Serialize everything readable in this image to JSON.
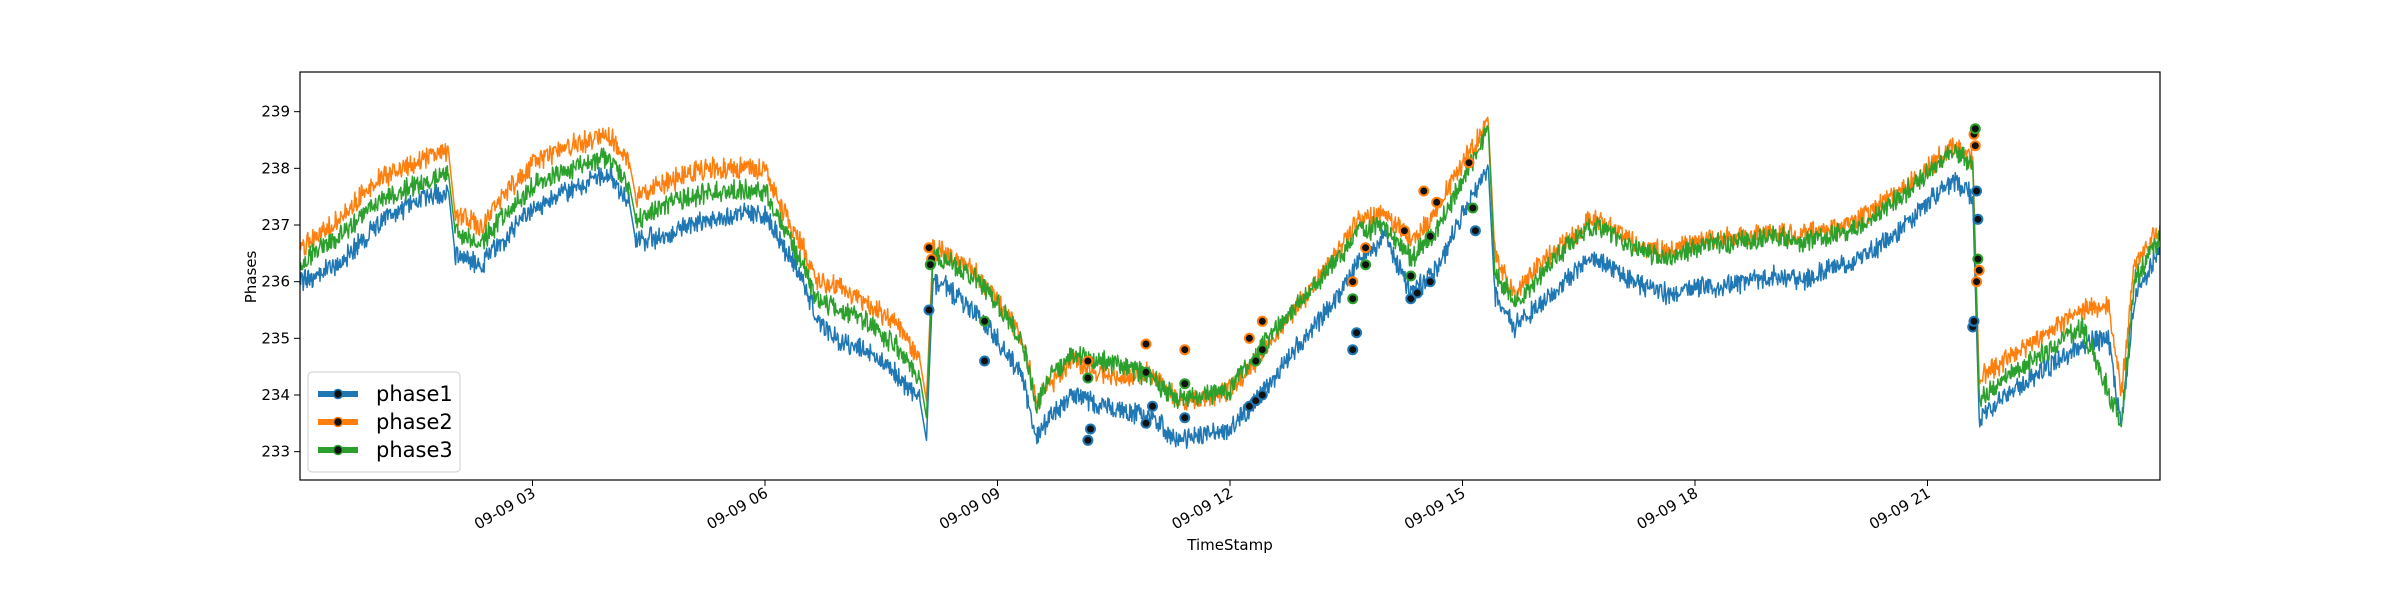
{
  "chart_data": {
    "type": "line",
    "xlabel": "TimeStamp",
    "ylabel": "Phases",
    "ylim": [
      232.5,
      239.7
    ],
    "xlim": [
      "2019-09-09 00:00",
      "2019-09-09 24:00"
    ],
    "yticks": [
      233,
      234,
      235,
      236,
      237,
      238,
      239
    ],
    "xticks": [
      {
        "value": "2019-09-09 03:00",
        "label": "09-09 03"
      },
      {
        "value": "2019-09-09 06:00",
        "label": "09-09 06"
      },
      {
        "value": "2019-09-09 09:00",
        "label": "09-09 09"
      },
      {
        "value": "2019-09-09 12:00",
        "label": "09-09 12"
      },
      {
        "value": "2019-09-09 15:00",
        "label": "09-09 15"
      },
      {
        "value": "2019-09-09 18:00",
        "label": "09-09 18"
      },
      {
        "value": "2019-09-09 21:00",
        "label": "09-09 21"
      }
    ],
    "legend": "lower-left",
    "grid": false,
    "series": [
      {
        "name": "phase1",
        "color": "#1f77b4",
        "points": [
          [
            "00:00",
            236.0
          ],
          [
            "00:30",
            236.3
          ],
          [
            "01:00",
            237.0
          ],
          [
            "01:20",
            237.3
          ],
          [
            "01:40",
            237.5
          ],
          [
            "01:55",
            237.6
          ],
          [
            "02:00",
            236.5
          ],
          [
            "02:20",
            236.3
          ],
          [
            "02:40",
            236.8
          ],
          [
            "03:00",
            237.3
          ],
          [
            "03:30",
            237.6
          ],
          [
            "04:00",
            237.9
          ],
          [
            "04:15",
            237.4
          ],
          [
            "04:20",
            236.7
          ],
          [
            "04:40",
            236.8
          ],
          [
            "05:00",
            237.0
          ],
          [
            "05:20",
            237.1
          ],
          [
            "05:40",
            237.2
          ],
          [
            "06:00",
            237.2
          ],
          [
            "06:15",
            236.6
          ],
          [
            "06:30",
            236.0
          ],
          [
            "06:40",
            235.3
          ],
          [
            "07:00",
            234.9
          ],
          [
            "07:20",
            234.8
          ],
          [
            "07:40",
            234.4
          ],
          [
            "08:00",
            233.9
          ],
          [
            "08:05",
            233.2
          ],
          [
            "08:10",
            236.0
          ],
          [
            "08:20",
            235.9
          ],
          [
            "08:40",
            235.5
          ],
          [
            "09:00",
            235.0
          ],
          [
            "09:20",
            234.3
          ],
          [
            "09:30",
            233.2
          ],
          [
            "09:40",
            233.6
          ],
          [
            "10:00",
            234.0
          ],
          [
            "10:20",
            233.8
          ],
          [
            "10:40",
            233.7
          ],
          [
            "11:00",
            233.6
          ],
          [
            "11:20",
            233.2
          ],
          [
            "11:40",
            233.3
          ],
          [
            "12:00",
            233.4
          ],
          [
            "12:20",
            233.9
          ],
          [
            "12:40",
            234.5
          ],
          [
            "13:00",
            235.1
          ],
          [
            "13:20",
            235.6
          ],
          [
            "13:40",
            236.4
          ],
          [
            "14:00",
            236.8
          ],
          [
            "14:20",
            235.8
          ],
          [
            "14:40",
            236.2
          ],
          [
            "15:00",
            237.2
          ],
          [
            "15:20",
            238.0
          ],
          [
            "15:25",
            235.8
          ],
          [
            "15:40",
            235.2
          ],
          [
            "16:00",
            235.6
          ],
          [
            "16:20",
            236.0
          ],
          [
            "16:40",
            236.4
          ],
          [
            "17:00",
            236.2
          ],
          [
            "17:20",
            235.9
          ],
          [
            "17:40",
            235.8
          ],
          [
            "18:00",
            235.9
          ],
          [
            "18:20",
            235.9
          ],
          [
            "18:40",
            236.0
          ],
          [
            "19:00",
            236.1
          ],
          [
            "19:20",
            236.0
          ],
          [
            "19:40",
            236.2
          ],
          [
            "20:00",
            236.3
          ],
          [
            "20:20",
            236.6
          ],
          [
            "20:40",
            236.9
          ],
          [
            "21:00",
            237.4
          ],
          [
            "21:20",
            237.8
          ],
          [
            "21:35",
            237.5
          ],
          [
            "21:40",
            233.6
          ],
          [
            "22:00",
            234.0
          ],
          [
            "22:20",
            234.3
          ],
          [
            "22:40",
            234.6
          ],
          [
            "23:00",
            234.9
          ],
          [
            "23:20",
            235.0
          ],
          [
            "23:30",
            233.4
          ],
          [
            "23:40",
            235.7
          ],
          [
            "24:00",
            236.6
          ]
        ]
      },
      {
        "name": "phase2",
        "color": "#ff7f0e",
        "points": [
          [
            "00:00",
            236.6
          ],
          [
            "00:30",
            237.1
          ],
          [
            "01:00",
            237.8
          ],
          [
            "01:20",
            238.0
          ],
          [
            "01:40",
            238.2
          ],
          [
            "01:55",
            238.3
          ],
          [
            "02:00",
            237.2
          ],
          [
            "02:20",
            237.0
          ],
          [
            "02:40",
            237.6
          ],
          [
            "03:00",
            238.1
          ],
          [
            "03:30",
            238.4
          ],
          [
            "04:00",
            238.6
          ],
          [
            "04:15",
            238.1
          ],
          [
            "04:20",
            237.5
          ],
          [
            "04:40",
            237.7
          ],
          [
            "05:00",
            237.9
          ],
          [
            "05:20",
            238.0
          ],
          [
            "05:40",
            238.0
          ],
          [
            "06:00",
            238.0
          ],
          [
            "06:15",
            237.2
          ],
          [
            "06:30",
            236.6
          ],
          [
            "06:40",
            236.0
          ],
          [
            "07:00",
            235.9
          ],
          [
            "07:20",
            235.6
          ],
          [
            "07:40",
            235.3
          ],
          [
            "08:00",
            234.6
          ],
          [
            "08:05",
            233.9
          ],
          [
            "08:10",
            236.6
          ],
          [
            "08:20",
            236.5
          ],
          [
            "08:40",
            236.2
          ],
          [
            "09:00",
            235.7
          ],
          [
            "09:20",
            234.9
          ],
          [
            "09:30",
            233.9
          ],
          [
            "09:40",
            234.2
          ],
          [
            "10:00",
            234.6
          ],
          [
            "10:20",
            234.4
          ],
          [
            "10:40",
            234.3
          ],
          [
            "11:00",
            234.4
          ],
          [
            "11:20",
            233.9
          ],
          [
            "11:40",
            233.9
          ],
          [
            "12:00",
            234.1
          ],
          [
            "12:20",
            234.6
          ],
          [
            "12:40",
            235.2
          ],
          [
            "13:00",
            235.8
          ],
          [
            "13:20",
            236.4
          ],
          [
            "13:40",
            237.1
          ],
          [
            "14:00",
            237.2
          ],
          [
            "14:20",
            236.7
          ],
          [
            "14:40",
            237.3
          ],
          [
            "15:00",
            238.1
          ],
          [
            "15:20",
            238.8
          ],
          [
            "15:25",
            236.5
          ],
          [
            "15:40",
            235.8
          ],
          [
            "16:00",
            236.3
          ],
          [
            "16:20",
            236.7
          ],
          [
            "16:40",
            237.1
          ],
          [
            "17:00",
            236.9
          ],
          [
            "17:20",
            236.6
          ],
          [
            "17:40",
            236.5
          ],
          [
            "18:00",
            236.7
          ],
          [
            "18:20",
            236.8
          ],
          [
            "18:40",
            236.8
          ],
          [
            "19:00",
            236.9
          ],
          [
            "19:20",
            236.8
          ],
          [
            "19:40",
            236.9
          ],
          [
            "20:00",
            237.0
          ],
          [
            "20:20",
            237.3
          ],
          [
            "20:40",
            237.6
          ],
          [
            "21:00",
            238.0
          ],
          [
            "21:20",
            238.4
          ],
          [
            "21:35",
            238.2
          ],
          [
            "21:40",
            234.3
          ],
          [
            "22:00",
            234.6
          ],
          [
            "22:20",
            234.9
          ],
          [
            "22:40",
            235.2
          ],
          [
            "23:00",
            235.5
          ],
          [
            "23:20",
            235.6
          ],
          [
            "23:30",
            234.0
          ],
          [
            "23:40",
            236.3
          ],
          [
            "24:00",
            237.0
          ]
        ]
      },
      {
        "name": "phase3",
        "color": "#2ca02c",
        "points": [
          [
            "00:00",
            236.3
          ],
          [
            "00:30",
            236.8
          ],
          [
            "01:00",
            237.4
          ],
          [
            "01:20",
            237.6
          ],
          [
            "01:40",
            237.8
          ],
          [
            "01:55",
            237.9
          ],
          [
            "02:00",
            236.9
          ],
          [
            "02:20",
            236.7
          ],
          [
            "02:40",
            237.2
          ],
          [
            "03:00",
            237.7
          ],
          [
            "03:30",
            238.0
          ],
          [
            "04:00",
            238.2
          ],
          [
            "04:15",
            237.7
          ],
          [
            "04:20",
            237.1
          ],
          [
            "04:40",
            237.3
          ],
          [
            "05:00",
            237.5
          ],
          [
            "05:20",
            237.6
          ],
          [
            "05:40",
            237.6
          ],
          [
            "06:00",
            237.6
          ],
          [
            "06:15",
            236.9
          ],
          [
            "06:30",
            236.3
          ],
          [
            "06:40",
            235.7
          ],
          [
            "07:00",
            235.5
          ],
          [
            "07:20",
            235.3
          ],
          [
            "07:40",
            234.9
          ],
          [
            "08:00",
            234.3
          ],
          [
            "08:05",
            233.6
          ],
          [
            "08:10",
            236.4
          ],
          [
            "08:20",
            236.4
          ],
          [
            "08:40",
            236.1
          ],
          [
            "09:00",
            235.6
          ],
          [
            "09:20",
            234.9
          ],
          [
            "09:30",
            233.8
          ],
          [
            "09:40",
            234.3
          ],
          [
            "10:00",
            234.7
          ],
          [
            "10:20",
            234.6
          ],
          [
            "10:40",
            234.5
          ],
          [
            "11:00",
            234.3
          ],
          [
            "11:20",
            233.9
          ],
          [
            "11:40",
            234.0
          ],
          [
            "12:00",
            234.1
          ],
          [
            "12:20",
            234.7
          ],
          [
            "12:40",
            235.3
          ],
          [
            "13:00",
            235.8
          ],
          [
            "13:20",
            236.3
          ],
          [
            "13:40",
            236.9
          ],
          [
            "14:00",
            237.0
          ],
          [
            "14:20",
            236.4
          ],
          [
            "14:40",
            236.9
          ],
          [
            "15:00",
            237.8
          ],
          [
            "15:20",
            238.7
          ],
          [
            "15:25",
            236.2
          ],
          [
            "15:40",
            235.6
          ],
          [
            "16:00",
            236.1
          ],
          [
            "16:20",
            236.6
          ],
          [
            "16:40",
            237.0
          ],
          [
            "17:00",
            236.8
          ],
          [
            "17:20",
            236.5
          ],
          [
            "17:40",
            236.4
          ],
          [
            "18:00",
            236.6
          ],
          [
            "18:20",
            236.7
          ],
          [
            "18:40",
            236.7
          ],
          [
            "19:00",
            236.8
          ],
          [
            "19:20",
            236.7
          ],
          [
            "19:40",
            236.8
          ],
          [
            "20:00",
            236.9
          ],
          [
            "20:20",
            237.2
          ],
          [
            "20:40",
            237.5
          ],
          [
            "21:00",
            237.9
          ],
          [
            "21:20",
            238.3
          ],
          [
            "21:35",
            238.1
          ],
          [
            "21:40",
            233.9
          ],
          [
            "22:00",
            234.3
          ],
          [
            "22:20",
            234.6
          ],
          [
            "22:40",
            234.9
          ],
          [
            "23:00",
            235.2
          ],
          [
            "23:30",
            233.5
          ],
          [
            "23:40",
            236.0
          ],
          [
            "24:00",
            236.8
          ]
        ]
      }
    ],
    "anomaly_markers": {
      "phase1": [
        [
          "08:07",
          235.5
        ],
        [
          "08:50",
          234.6
        ],
        [
          "10:10",
          233.2
        ],
        [
          "10:12",
          233.4
        ],
        [
          "10:55",
          233.5
        ],
        [
          "11:00",
          233.8
        ],
        [
          "11:25",
          233.6
        ],
        [
          "12:15",
          233.8
        ],
        [
          "12:20",
          233.9
        ],
        [
          "12:25",
          234.0
        ],
        [
          "13:35",
          234.8
        ],
        [
          "13:38",
          235.1
        ],
        [
          "14:20",
          235.7
        ],
        [
          "14:25",
          235.8
        ],
        [
          "14:35",
          236.0
        ],
        [
          "15:10",
          236.9
        ],
        [
          "21:35",
          235.2
        ],
        [
          "21:36",
          235.3
        ],
        [
          "21:38",
          237.6
        ],
        [
          "21:39",
          237.1
        ]
      ],
      "phase2": [
        [
          "08:07",
          236.6
        ],
        [
          "08:09",
          236.4
        ],
        [
          "10:10",
          234.6
        ],
        [
          "10:55",
          234.9
        ],
        [
          "11:25",
          234.8
        ],
        [
          "12:15",
          235.0
        ],
        [
          "12:25",
          235.3
        ],
        [
          "13:35",
          236.0
        ],
        [
          "13:45",
          236.6
        ],
        [
          "14:15",
          236.9
        ],
        [
          "14:30",
          237.6
        ],
        [
          "14:40",
          237.4
        ],
        [
          "15:05",
          238.1
        ],
        [
          "21:36",
          238.6
        ],
        [
          "21:37",
          238.4
        ],
        [
          "21:38",
          236.0
        ],
        [
          "21:40",
          236.2
        ]
      ],
      "phase3": [
        [
          "08:08",
          236.3
        ],
        [
          "08:50",
          235.3
        ],
        [
          "10:10",
          234.3
        ],
        [
          "10:55",
          234.4
        ],
        [
          "11:25",
          234.2
        ],
        [
          "12:20",
          234.6
        ],
        [
          "12:25",
          234.8
        ],
        [
          "13:35",
          235.7
        ],
        [
          "13:45",
          236.3
        ],
        [
          "14:20",
          236.1
        ],
        [
          "14:35",
          236.8
        ],
        [
          "15:08",
          237.3
        ],
        [
          "21:37",
          238.7
        ],
        [
          "21:39",
          236.4
        ]
      ]
    }
  }
}
